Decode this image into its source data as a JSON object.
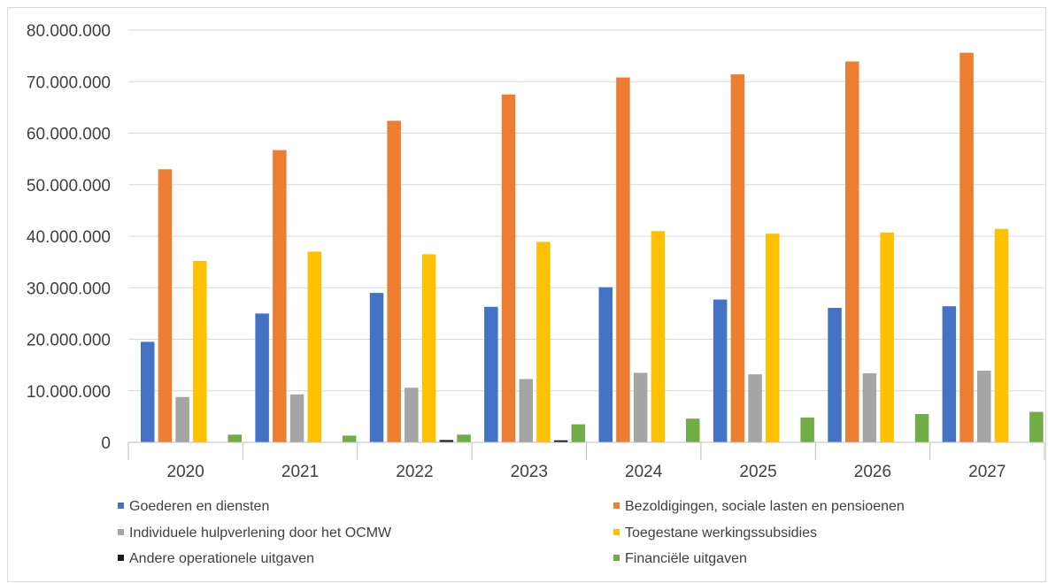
{
  "chart_data": {
    "type": "bar",
    "title": "",
    "xlabel": "",
    "ylabel": "",
    "categories": [
      "2020",
      "2021",
      "2022",
      "2023",
      "2024",
      "2025",
      "2026",
      "2027"
    ],
    "ylim": [
      0,
      80000000
    ],
    "yticks": [
      0,
      10000000,
      20000000,
      30000000,
      40000000,
      50000000,
      60000000,
      70000000,
      80000000
    ],
    "ytick_labels": [
      "0",
      "10.000.000",
      "20.000.000",
      "30.000.000",
      "40.000.000",
      "50.000.000",
      "60.000.000",
      "70.000.000",
      "80.000.000"
    ],
    "grid": true,
    "legend_position": "bottom",
    "series": [
      {
        "name": "Goederen en diensten",
        "color": "#4472c4",
        "values": [
          19500000,
          25000000,
          29000000,
          26300000,
          30100000,
          27700000,
          26100000,
          26400000
        ]
      },
      {
        "name": "Bezoldigingen, sociale lasten en pensioenen",
        "color": "#ed7d31",
        "values": [
          53000000,
          56700000,
          62400000,
          67500000,
          70800000,
          71400000,
          73900000,
          75600000
        ]
      },
      {
        "name": "Individuele hulpverlening door het OCMW",
        "color": "#a5a5a5",
        "values": [
          8800000,
          9300000,
          10600000,
          12300000,
          13500000,
          13200000,
          13400000,
          13900000
        ]
      },
      {
        "name": "Toegestane werkingssubsidies",
        "color": "#ffc000",
        "values": [
          35200000,
          37000000,
          36500000,
          38900000,
          41000000,
          40500000,
          40700000,
          41400000
        ]
      },
      {
        "name": "Andere operationele uitgaven",
        "color": "#1a1a1a",
        "values": [
          0,
          0,
          450000,
          400000,
          0,
          0,
          0,
          0
        ]
      },
      {
        "name": "Financiële uitgaven",
        "color": "#70ad47",
        "values": [
          1500000,
          1300000,
          1500000,
          3500000,
          4600000,
          4800000,
          5500000,
          5900000
        ]
      }
    ]
  }
}
